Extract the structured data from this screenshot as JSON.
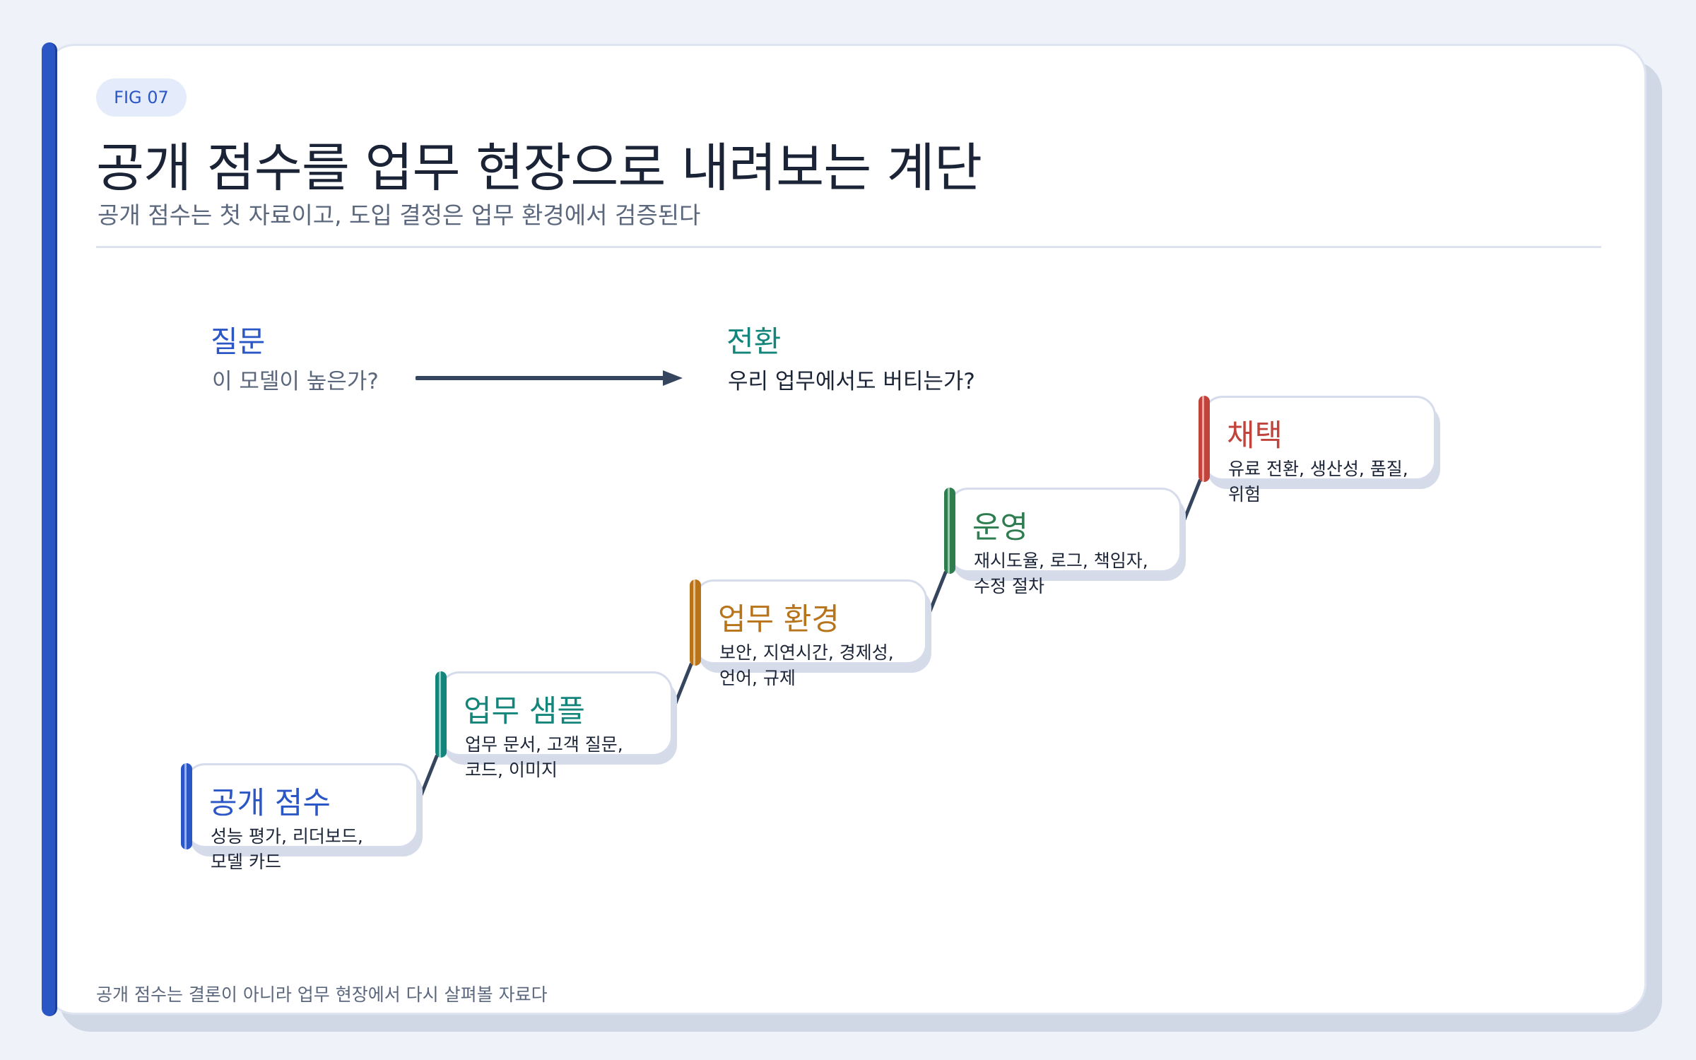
{
  "figure": {
    "badge": "FIG 07",
    "title": "공개 점수를 업무 현장으로 내려보는 계단",
    "subtitle": "공개 점수는 첫 자료이고, 도입 결정은 업무 환경에서 검증된다",
    "footer": "공개 점수는 결론이 아니라 업무 현장에서 다시 살펴볼 자료다"
  },
  "question": {
    "label": "질문",
    "text": "이 모델이 높은가?",
    "color": "#2a56c6"
  },
  "shift": {
    "label": "전환",
    "text": "우리 업무에서도 버티는가?",
    "color": "#14857a"
  },
  "steps": [
    {
      "title": "공개 점수",
      "desc_line1": "성능 평가, 리더보드,",
      "desc_line2": "모델 카드",
      "color": "#2a56c6"
    },
    {
      "title": "업무 샘플",
      "desc_line1": "업무 문서, 고객 질문,",
      "desc_line2": "코드, 이미지",
      "color": "#14857a"
    },
    {
      "title": "업무 환경",
      "desc_line1": "보안, 지연시간, 경제성,",
      "desc_line2": "언어, 규제",
      "color": "#b8741a"
    },
    {
      "title": "운영",
      "desc_line1": "재시도율, 로그, 책임자,",
      "desc_line2": "수정 절차",
      "color": "#2e7d4f"
    },
    {
      "title": "채택",
      "desc_line1": "유료 전환, 생산성, 품질,",
      "desc_line2": "위험",
      "color": "#c0443c"
    }
  ]
}
